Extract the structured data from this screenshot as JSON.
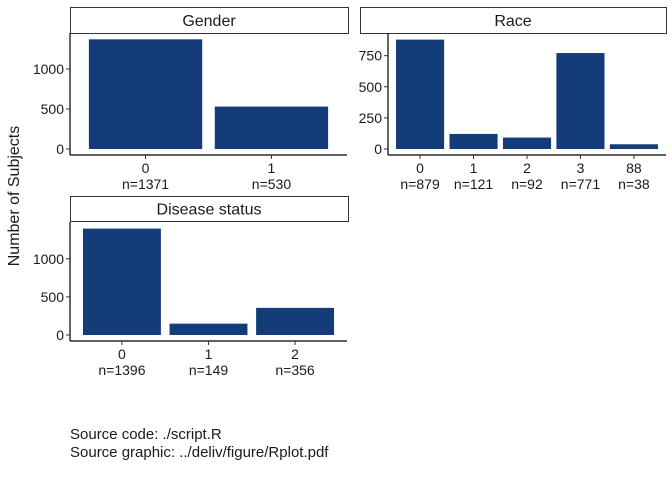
{
  "figure": {
    "ylabel": "Number of Subjects",
    "bar_color": "#143C78",
    "caption_lines": [
      "Source code: ./script.R",
      "Source graphic: ../deliv/figure/Rplot.pdf"
    ]
  },
  "chart_data": [
    {
      "type": "bar",
      "title": "Gender",
      "categories": [
        "0",
        "1"
      ],
      "n_labels": [
        "n=1371",
        "n=530"
      ],
      "values": [
        1371,
        530
      ],
      "yticks": [
        0,
        500,
        1000
      ],
      "ylim": [
        0,
        1400
      ],
      "xlabel": "",
      "ylabel": "Number of Subjects",
      "grid": false,
      "legend": "none"
    },
    {
      "type": "bar",
      "title": "Race",
      "categories": [
        "0",
        "1",
        "2",
        "3",
        "88"
      ],
      "n_labels": [
        "n=879",
        "n=121",
        "n=92",
        "n=771",
        "n=38"
      ],
      "values": [
        879,
        121,
        92,
        771,
        38
      ],
      "yticks": [
        0,
        250,
        500,
        750
      ],
      "ylim": [
        0,
        900
      ],
      "xlabel": "",
      "ylabel": "Number of Subjects",
      "grid": false,
      "legend": "none"
    },
    {
      "type": "bar",
      "title": "Disease status",
      "categories": [
        "0",
        "1",
        "2"
      ],
      "n_labels": [
        "n=1396",
        "n=149",
        "n=356"
      ],
      "values": [
        1396,
        149,
        356
      ],
      "yticks": [
        0,
        500,
        1000
      ],
      "ylim": [
        0,
        1430
      ],
      "xlabel": "",
      "ylabel": "Number of Subjects",
      "grid": false,
      "legend": "none"
    }
  ]
}
